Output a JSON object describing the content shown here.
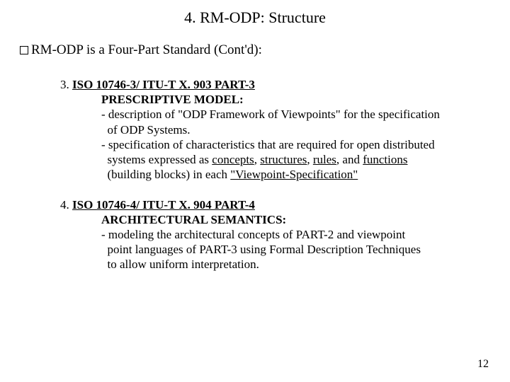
{
  "title": "4. RM-ODP: Structure",
  "subtitle": "RM-ODP is a Four-Part Standard (Cont'd):",
  "item3": {
    "num": "3. ",
    "title": "ISO 10746-3/ ITU-T X. 903 PART-3",
    "sub": "PRESCRIPTIVE MODEL:",
    "l1a": "- description of \"ODP Framework of Viewpoints\" for the specification",
    "l1b": "  of ODP Systems.",
    "l2a": "- specification of characteristics that are required for open distributed",
    "l2b_pre": "  systems expressed as ",
    "l2b_u1": "concepts",
    "l2b_s1": ", ",
    "l2b_u2": "structures",
    "l2b_s2": ", ",
    "l2b_u3": "rules",
    "l2b_s3": ", and ",
    "l2b_u4": "functions",
    "l2c_pre": "  (building blocks) in each ",
    "l2c_u": "\"Viewpoint-Specification\""
  },
  "item4": {
    "num": "4. ",
    "title": "ISO 10746-4/ ITU-T X. 904 PART-4",
    "sub": "ARCHITECTURAL SEMANTICS:",
    "l1": "- modeling the architectural concepts of PART-2 and viewpoint",
    "l2": "  point languages of PART-3 using Formal Description Techniques",
    "l3": "  to allow uniform interpretation."
  },
  "page": "12"
}
